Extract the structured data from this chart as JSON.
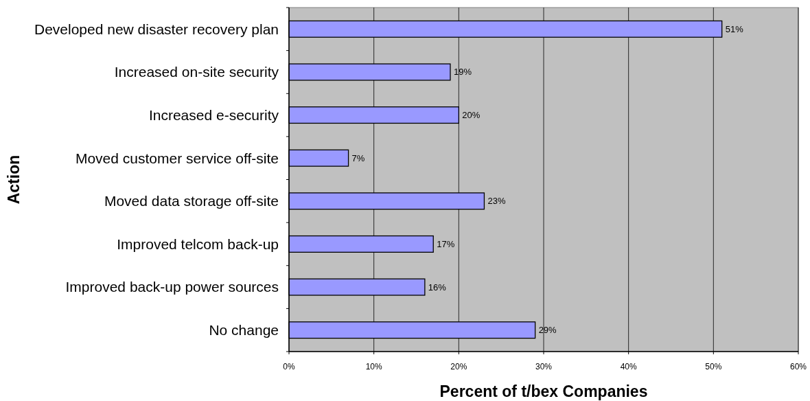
{
  "chart_data": {
    "type": "bar",
    "orientation": "horizontal",
    "xlabel": "Percent of t/bex Companies",
    "ylabel": "Action",
    "categories": [
      "Developed new disaster recovery plan",
      "Increased on-site security",
      "Increased e-security",
      "Moved customer service off-site",
      "Moved data storage off-site",
      "Improved telcom back-up",
      "Improved back-up power sources",
      "No change"
    ],
    "values": [
      51,
      19,
      20,
      7,
      23,
      17,
      16,
      29
    ],
    "value_labels": [
      "51%",
      "19%",
      "20%",
      "7%",
      "23%",
      "17%",
      "16%",
      "29%"
    ],
    "color": "#9999ff",
    "xlim": [
      0,
      60
    ],
    "xticks": [
      {
        "value": 0,
        "label": "0%"
      },
      {
        "value": 10,
        "label": "10%"
      },
      {
        "value": 20,
        "label": "20%"
      },
      {
        "value": 30,
        "label": "30%"
      },
      {
        "value": 40,
        "label": "40%"
      },
      {
        "value": 50,
        "label": "50%"
      },
      {
        "value": 60,
        "label": "60%"
      }
    ],
    "grid": "x"
  }
}
